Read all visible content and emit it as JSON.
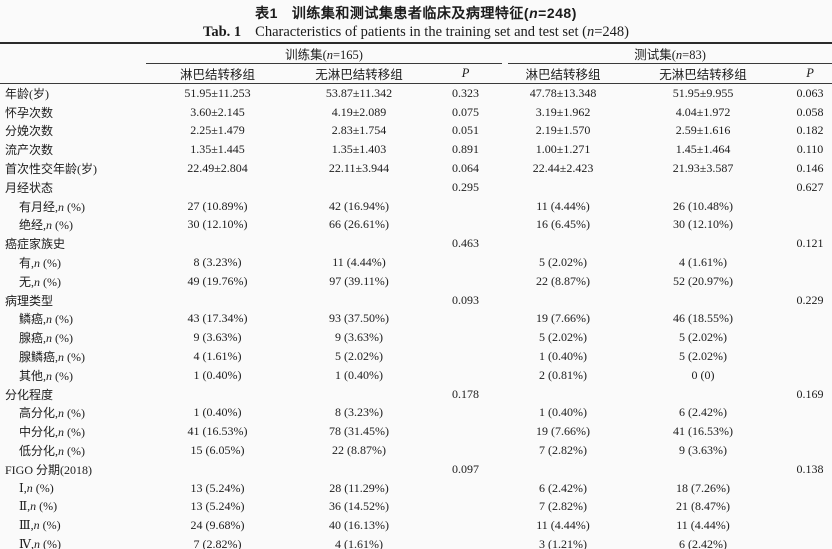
{
  "title": {
    "zh_label": "表1",
    "zh_text": "训练集和测试集患者临床及病理特征(*n*=248)",
    "en_label": "Tab. 1",
    "en_text": "Characteristics of patients in the training set and test set (*n*=248)"
  },
  "table": {
    "groups": [
      {
        "label": "训练集(*n*=165)"
      },
      {
        "label": "测试集(*n*=83)"
      }
    ],
    "columns": [
      "淋巴结转移组",
      "无淋巴结转移组",
      "*P*",
      "淋巴结转移组",
      "无淋巴结转移组",
      "*P*"
    ],
    "rows": [
      {
        "label": "年龄(岁)",
        "indent": false,
        "cells": [
          "51.95±11.253",
          "53.87±11.342",
          "0.323",
          "47.78±13.348",
          "51.95±9.955",
          "0.063"
        ]
      },
      {
        "label": "怀孕次数",
        "indent": false,
        "cells": [
          "3.60±2.145",
          "4.19±2.089",
          "0.075",
          "3.19±1.962",
          "4.04±1.972",
          "0.058"
        ]
      },
      {
        "label": "分娩次数",
        "indent": false,
        "cells": [
          "2.25±1.479",
          "2.83±1.754",
          "0.051",
          "2.19±1.570",
          "2.59±1.616",
          "0.182"
        ]
      },
      {
        "label": "流产次数",
        "indent": false,
        "cells": [
          "1.35±1.445",
          "1.35±1.403",
          "0.891",
          "1.00±1.271",
          "1.45±1.464",
          "0.110"
        ]
      },
      {
        "label": "首次性交年龄(岁)",
        "indent": false,
        "cells": [
          "22.49±2.804",
          "22.11±3.944",
          "0.064",
          "22.44±2.423",
          "21.93±3.587",
          "0.146"
        ]
      },
      {
        "label": "月经状态",
        "indent": false,
        "cells": [
          "",
          "",
          "0.295",
          "",
          "",
          "0.627"
        ]
      },
      {
        "label": "有月经,*n* (%)",
        "indent": true,
        "cells": [
          "27 (10.89%)",
          "42 (16.94%)",
          "",
          "11 (4.44%)",
          "26 (10.48%)",
          ""
        ]
      },
      {
        "label": "绝经,*n* (%)",
        "indent": true,
        "cells": [
          "30 (12.10%)",
          "66 (26.61%)",
          "",
          "16 (6.45%)",
          "30 (12.10%)",
          ""
        ]
      },
      {
        "label": "癌症家族史",
        "indent": false,
        "cells": [
          "",
          "",
          "0.463",
          "",
          "",
          "0.121"
        ]
      },
      {
        "label": "有,*n* (%)",
        "indent": true,
        "cells": [
          "8 (3.23%)",
          "11 (4.44%)",
          "",
          "5 (2.02%)",
          "4 (1.61%)",
          ""
        ]
      },
      {
        "label": "无,*n* (%)",
        "indent": true,
        "cells": [
          "49 (19.76%)",
          "97 (39.11%)",
          "",
          "22 (8.87%)",
          "52 (20.97%)",
          ""
        ]
      },
      {
        "label": "病理类型",
        "indent": false,
        "cells": [
          "",
          "",
          "0.093",
          "",
          "",
          "0.229"
        ]
      },
      {
        "label": "鳞癌,*n* (%)",
        "indent": true,
        "cells": [
          "43 (17.34%)",
          "93 (37.50%)",
          "",
          "19 (7.66%)",
          "46 (18.55%)",
          ""
        ]
      },
      {
        "label": "腺癌,*n* (%)",
        "indent": true,
        "cells": [
          "9 (3.63%)",
          "9 (3.63%)",
          "",
          "5 (2.02%)",
          "5 (2.02%)",
          ""
        ]
      },
      {
        "label": "腺鳞癌,*n* (%)",
        "indent": true,
        "cells": [
          "4 (1.61%)",
          "5 (2.02%)",
          "",
          "1 (0.40%)",
          "5 (2.02%)",
          ""
        ]
      },
      {
        "label": "其他,*n* (%)",
        "indent": true,
        "cells": [
          "1 (0.40%)",
          "1 (0.40%)",
          "",
          "2 (0.81%)",
          "0 (0)",
          ""
        ]
      },
      {
        "label": "分化程度",
        "indent": false,
        "cells": [
          "",
          "",
          "0.178",
          "",
          "",
          "0.169"
        ]
      },
      {
        "label": "高分化,*n* (%)",
        "indent": true,
        "cells": [
          "1 (0.40%)",
          "8 (3.23%)",
          "",
          "1 (0.40%)",
          "6 (2.42%)",
          ""
        ]
      },
      {
        "label": "中分化,*n* (%)",
        "indent": true,
        "cells": [
          "41 (16.53%)",
          "78 (31.45%)",
          "",
          "19 (7.66%)",
          "41 (16.53%)",
          ""
        ]
      },
      {
        "label": "低分化,*n* (%)",
        "indent": true,
        "cells": [
          "15 (6.05%)",
          "22 (8.87%)",
          "",
          "7 (2.82%)",
          "9 (3.63%)",
          ""
        ]
      },
      {
        "label": "FIGO 分期(2018)",
        "indent": false,
        "cells": [
          "",
          "",
          "0.097",
          "",
          "",
          "0.138"
        ]
      },
      {
        "label": "Ⅰ,*n* (%)",
        "indent": true,
        "cells": [
          "13 (5.24%)",
          "28 (11.29%)",
          "",
          "6 (2.42%)",
          "18 (7.26%)",
          ""
        ]
      },
      {
        "label": "Ⅱ,*n* (%)",
        "indent": true,
        "cells": [
          "13 (5.24%)",
          "36 (14.52%)",
          "",
          "7 (2.82%)",
          "21 (8.47%)",
          ""
        ]
      },
      {
        "label": "Ⅲ,*n* (%)",
        "indent": true,
        "cells": [
          "24 (9.68%)",
          "40 (16.13%)",
          "",
          "11 (4.44%)",
          "11 (4.44%)",
          ""
        ]
      },
      {
        "label": "Ⅳ,*n* (%)",
        "indent": true,
        "cells": [
          "7 (2.82%)",
          "4 (1.61%)",
          "",
          "3 (1.21%)",
          "6 (2.42%)",
          ""
        ]
      }
    ]
  }
}
